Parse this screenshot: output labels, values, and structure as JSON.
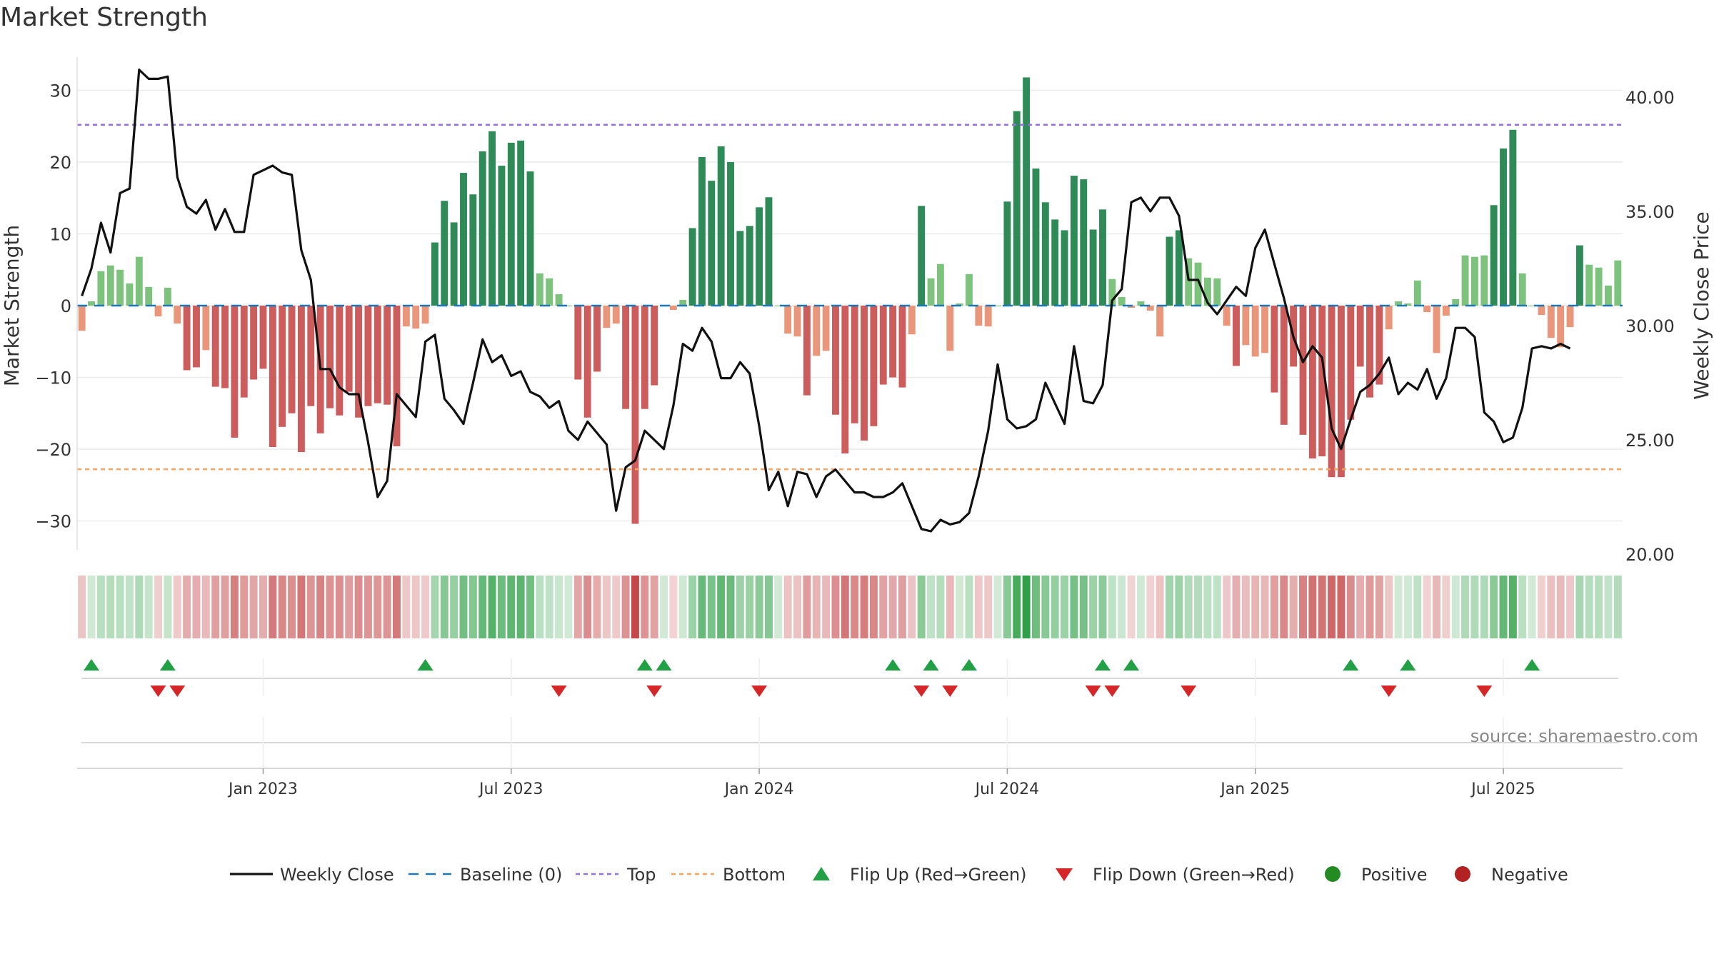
{
  "chart_data": {
    "type": "bar+line",
    "title": "Market Strength",
    "y_left_label": "Market Strength",
    "y_right_label": "Weekly Close Price",
    "y_left_range": [
      -35,
      35
    ],
    "y_left_ticks": [
      30,
      20,
      10,
      0,
      -10,
      -20,
      -30
    ],
    "y_left_tick_labels": [
      "30",
      "20",
      "10",
      "0",
      "−10",
      "−20",
      "−30"
    ],
    "y_right_range": [
      20,
      42
    ],
    "y_right_ticks": [
      40,
      35,
      30,
      25,
      20
    ],
    "y_right_tick_labels": [
      "40.00",
      "35.00",
      "30.00",
      "25.00",
      "20.00"
    ],
    "x_tick_labels": [
      "Jan 2023",
      "Jul 2023",
      "Jan 2024",
      "Jul 2024",
      "Jan 2025",
      "Jul 2025"
    ],
    "x_tick_weeks": [
      19,
      45,
      71,
      97,
      123,
      149
    ],
    "top_level": 25.2,
    "bottom_level": -22.8,
    "baseline": 0,
    "strength": [
      -3.5,
      0.6,
      4.8,
      5.6,
      5,
      3.1,
      6.8,
      2.6,
      -1.5,
      2.5,
      -2.5,
      -9,
      -8.6,
      -6.2,
      -11.3,
      -11.5,
      -18.4,
      -12.8,
      -10.3,
      -8.8,
      -19.7,
      -16.9,
      -15,
      -20.4,
      -14,
      -17.8,
      -14.3,
      -15.3,
      -12,
      -15.6,
      -14,
      -13.6,
      -13.8,
      -19.6,
      -2.9,
      -3.2,
      -2.5,
      8.8,
      14.6,
      11.6,
      18.5,
      15.5,
      21.5,
      24.3,
      19.5,
      22.7,
      23,
      18.7,
      4.5,
      3.8,
      1.6,
      0,
      -10.3,
      -15.6,
      -9.2,
      -3.1,
      -2.5,
      -14.4,
      -30.4,
      -14.4,
      -11.1,
      0,
      -0.6,
      0.8,
      10.8,
      20.7,
      17.4,
      22.2,
      20,
      10.4,
      11.1,
      13.7,
      15.1,
      0,
      -3.9,
      -4.3,
      -12.5,
      -7,
      -6.3,
      -15.2,
      -20.6,
      -16.4,
      -18.8,
      -16.8,
      -11,
      -10,
      -11.4,
      -4,
      13.9,
      3.8,
      5.8,
      -6.3,
      0.3,
      4.4,
      -2.8,
      -2.9,
      0,
      14.5,
      27.1,
      31.8,
      19.1,
      14.4,
      12,
      10.5,
      18.1,
      17.6,
      10.6,
      13.4,
      3.7,
      1.2,
      -0.3,
      0.6,
      -0.7,
      -4.3,
      9.6,
      10.5,
      6.6,
      6,
      3.9,
      3.8,
      -2.8,
      -8.4,
      -5.5,
      -7.1,
      -6.6,
      -12.1,
      -16.6,
      -8.5,
      -18,
      -21.3,
      -21,
      -23.9,
      -23.9,
      -15.9,
      -8.5,
      -12.8,
      -11,
      -3.3,
      0.6,
      0.3,
      3.5,
      -0.9,
      -6.6,
      -1.4,
      0.9,
      7,
      6.8,
      7,
      14,
      21.9,
      24.5,
      4.5,
      0,
      -1.3,
      -4.5,
      -5.8,
      -3,
      8.4,
      5.7,
      5.3,
      2.8,
      6.3
    ],
    "weekly_close": [
      31.3,
      32.5,
      34.5,
      33.2,
      35.8,
      36,
      41.2,
      40.8,
      40.8,
      40.9,
      36.5,
      35.2,
      34.9,
      35.5,
      34.2,
      35.1,
      34.1,
      34.1,
      36.6,
      36.8,
      37,
      36.7,
      36.6,
      33.3,
      32,
      28.1,
      28.1,
      27.3,
      27,
      27,
      24.9,
      22.5,
      23.2,
      27,
      26.5,
      26,
      29.3,
      29.6,
      26.8,
      26.3,
      25.7,
      27.5,
      29.4,
      28.4,
      28.7,
      27.8,
      28,
      27.1,
      26.9,
      26.4,
      26.7,
      25.4,
      25,
      25.8,
      25.3,
      24.8,
      21.9,
      23.8,
      24.1,
      25.4,
      25,
      24.6,
      26.5,
      29.2,
      28.9,
      29.9,
      29.3,
      27.7,
      27.7,
      28.4,
      27.9,
      25.6,
      22.8,
      23.6,
      22.1,
      23.6,
      23.5,
      22.5,
      23.4,
      23.7,
      23.2,
      22.7,
      22.7,
      22.5,
      22.5,
      22.7,
      23.1,
      22.1,
      21.1,
      21,
      21.5,
      21.3,
      21.4,
      21.8,
      23.4,
      25.4,
      28.3,
      25.9,
      25.5,
      25.6,
      25.9,
      27.5,
      26.6,
      25.7,
      29.1,
      26.7,
      26.6,
      27.4,
      31.1,
      31.6,
      35.4,
      35.6,
      35,
      35.6,
      35.6,
      34.8,
      32,
      32,
      31,
      30.5,
      31.1,
      31.7,
      31.3,
      33.4,
      34.2,
      32.7,
      31.2,
      29.5,
      28.4,
      29.1,
      28.6,
      25.5,
      24.6,
      25.9,
      27.1,
      27.4,
      27.9,
      28.6,
      27,
      27.5,
      27.2,
      28.1,
      26.8,
      27.7,
      29.9,
      29.9,
      29.5,
      26.2,
      25.8,
      24.9,
      25.1,
      26.4,
      29,
      29.1,
      29,
      29.2,
      29
    ],
    "signal_strips": [
      {
        "week": 0,
        "val": -3.5
      },
      {
        "week": 1,
        "val": 0.6
      },
      {
        "week": 2,
        "val": 4.8
      },
      {
        "week": 3,
        "val": 5.6
      },
      {
        "week": 4,
        "val": 5
      },
      {
        "week": 5,
        "val": 3.1
      },
      {
        "week": 6,
        "val": 6.8
      },
      {
        "week": 7,
        "val": 2.6
      },
      {
        "week": 8,
        "val": -1.5
      },
      {
        "week": 9,
        "val": 2.5
      }
    ],
    "flip_up_weeks": [
      1,
      9,
      36,
      59,
      61,
      85,
      89,
      93,
      107,
      110,
      133,
      139,
      152
    ],
    "flip_down_weeks": [
      8,
      10,
      50,
      60,
      71,
      88,
      91,
      106,
      108,
      116,
      137,
      147
    ],
    "legend": [
      "Weekly Close",
      "Baseline (0)",
      "Top",
      "Bottom",
      "Flip Up (Red→Green)",
      "Flip Down (Green→Red)",
      "Positive",
      "Negative"
    ],
    "source": "source: sharemaestro.com",
    "colors": {
      "green_dark": "#2e8b57",
      "green_light": "#7dc27d",
      "red_dark": "#cd5c5c",
      "red_light": "#e9967a",
      "top_line": "#9370db",
      "bottom_line": "#f4a460",
      "baseline": "#1f77b4",
      "close_line": "#111111",
      "flip_up": "#22a045",
      "flip_down": "#d62728",
      "positive": "#228b22",
      "negative": "#b22222"
    }
  }
}
